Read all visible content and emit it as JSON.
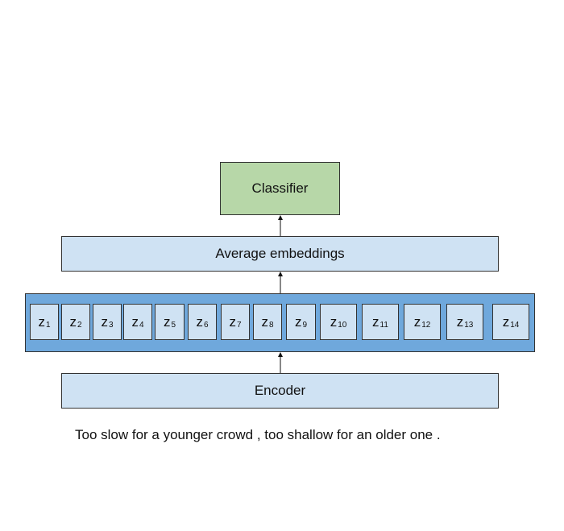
{
  "classifier": {
    "label": "Classifier"
  },
  "average": {
    "label": "Average embeddings"
  },
  "encoder": {
    "label": "Encoder"
  },
  "latents": [
    {
      "base": "z",
      "sub": "1"
    },
    {
      "base": "z",
      "sub": "2"
    },
    {
      "base": "z",
      "sub": "3"
    },
    {
      "base": "z",
      "sub": "4"
    },
    {
      "base": "z",
      "sub": "5"
    },
    {
      "base": "z",
      "sub": "6"
    },
    {
      "base": "z",
      "sub": "7"
    },
    {
      "base": "z",
      "sub": "8"
    },
    {
      "base": "z",
      "sub": "9"
    },
    {
      "base": "z",
      "sub": "10"
    },
    {
      "base": "z",
      "sub": "11"
    },
    {
      "base": "z",
      "sub": "12"
    },
    {
      "base": "z",
      "sub": "13"
    },
    {
      "base": "z",
      "sub": "14"
    }
  ],
  "sentence": "Too slow for a younger crowd , too shallow for an older one .",
  "colors": {
    "classifier_fill": "#b7d7a8",
    "light_blue_fill": "#cfe2f3",
    "latent_row_fill": "#6fa8dc"
  }
}
